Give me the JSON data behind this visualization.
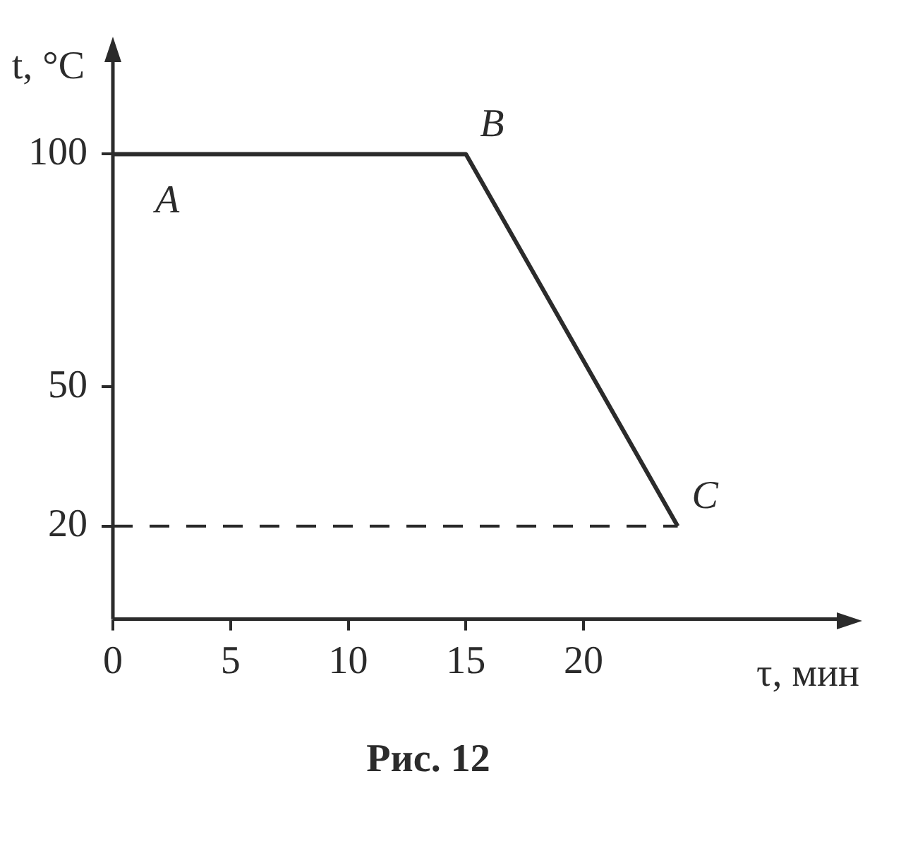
{
  "chart_data": {
    "type": "line",
    "title": "Рис. 12",
    "xlabel": "τ, мин",
    "ylabel": "t, °C",
    "x": [
      0,
      15,
      24
    ],
    "series": [
      {
        "color": "#2b2b2b",
        "values": [
          100,
          100,
          20
        ]
      }
    ],
    "xlim": [
      0,
      31
    ],
    "xticks": [
      0,
      5,
      10,
      15,
      20
    ],
    "ylim": [
      0,
      121
    ],
    "yticks": [
      20,
      50,
      100
    ],
    "ref_lines": [
      {
        "axis": "y",
        "value": 20,
        "line_style": "dashed",
        "color": "#2b2b2b"
      }
    ],
    "annotations": [
      "A",
      {
        "text": "B",
        "x": 15,
        "y": 100
      },
      {
        "text": "C",
        "x": 24,
        "y": 20
      }
    ],
    "grid": false,
    "legend": false,
    "marker": "none",
    "line_style": "solid"
  }
}
